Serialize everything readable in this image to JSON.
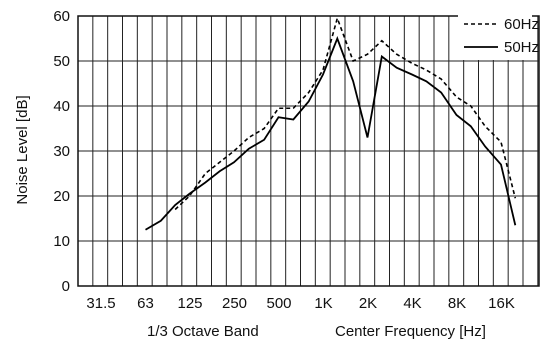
{
  "chart_data": {
    "type": "line",
    "title": "",
    "ylabel": "Noise Level [dB]",
    "xlabel_left": "1/3 Octave Band",
    "xlabel_right": "Center Frequency [Hz]",
    "ylim": [
      0,
      60
    ],
    "yticks": [
      "0",
      "10",
      "20",
      "30",
      "40",
      "50",
      "60"
    ],
    "x_tick_labels": [
      "31.5",
      "63",
      "125",
      "250",
      "500",
      "1K",
      "2K",
      "4K",
      "8K",
      "16K"
    ],
    "grid": true,
    "legend_position": "top-right",
    "series": [
      {
        "name": "60Hz",
        "style": "dashed",
        "color": "#000000",
        "x": [
          100,
          125,
          160,
          200,
          250,
          315,
          400,
          500,
          630,
          800,
          1000,
          1250,
          1600,
          2000,
          2500,
          3150,
          4000,
          5000,
          6300,
          8000,
          10000,
          12500,
          16000,
          20000
        ],
        "values": [
          17,
          20,
          25,
          27.5,
          30,
          33,
          35,
          39.5,
          39.5,
          43,
          48,
          59.5,
          50,
          51.5,
          54.5,
          51.5,
          49.5,
          48,
          46,
          42,
          40,
          35.5,
          32,
          19.5
        ]
      },
      {
        "name": "50Hz",
        "style": "solid",
        "color": "#000000",
        "x": [
          63,
          80,
          100,
          125,
          160,
          200,
          250,
          315,
          400,
          500,
          630,
          800,
          1000,
          1250,
          1600,
          2000,
          2500,
          3150,
          4000,
          5000,
          6300,
          8000,
          10000,
          12500,
          16000,
          20000
        ],
        "values": [
          12.5,
          14.5,
          18,
          20.5,
          23,
          25.5,
          27.5,
          30.5,
          32.5,
          37.5,
          37,
          41,
          47,
          55,
          45.5,
          33,
          51,
          48.5,
          47,
          45.5,
          43,
          38,
          35.5,
          31,
          27,
          13.5
        ]
      }
    ]
  }
}
